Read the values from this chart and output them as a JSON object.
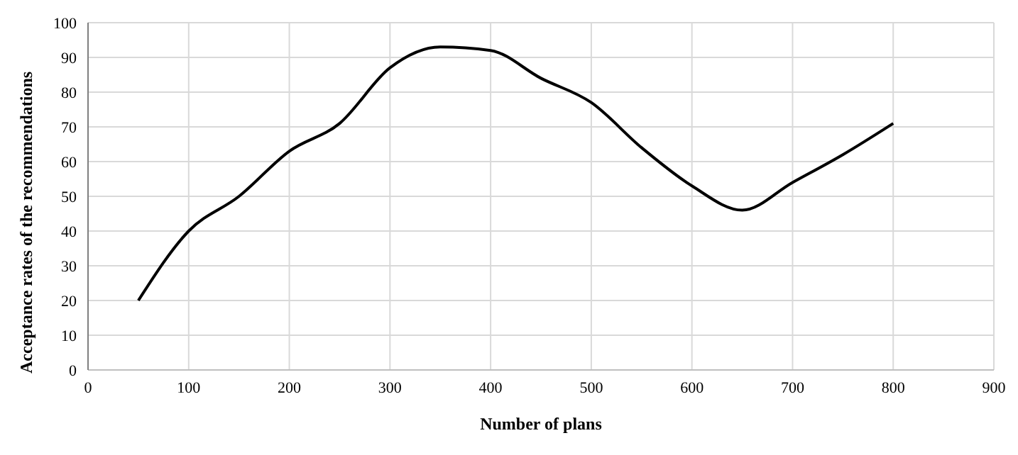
{
  "chart_data": {
    "type": "line",
    "xlabel": "Number of plans",
    "ylabel": "Acceptance rates of the recommendations",
    "x": [
      50,
      100,
      150,
      200,
      250,
      300,
      350,
      400,
      450,
      500,
      550,
      600,
      650,
      700,
      750,
      800
    ],
    "series": [
      {
        "color": "#000000",
        "values": [
          20,
          40,
          50,
          63,
          71,
          87,
          93,
          92,
          84,
          77,
          64,
          53,
          46,
          54,
          62,
          71
        ]
      }
    ],
    "xlim": [
      0,
      900
    ],
    "xticks": [
      0,
      100,
      200,
      300,
      400,
      500,
      600,
      700,
      800,
      900
    ],
    "ylim": [
      0,
      100
    ],
    "yticks": [
      0,
      10,
      20,
      30,
      40,
      50,
      60,
      70,
      80,
      90,
      100
    ],
    "grid": true,
    "marker": "none",
    "line_style": "solid"
  }
}
